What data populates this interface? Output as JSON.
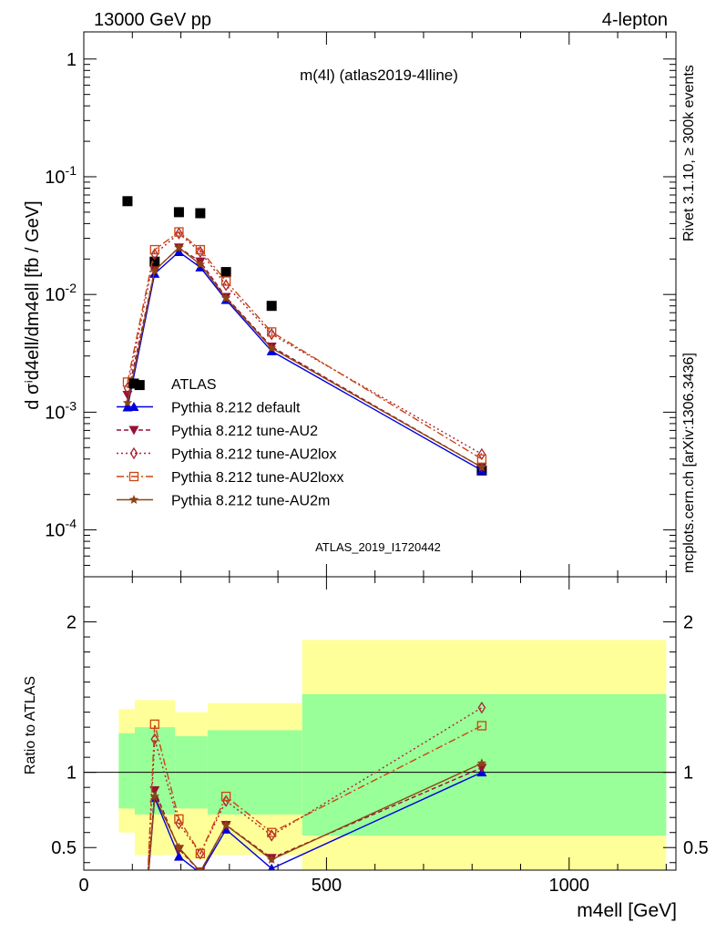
{
  "header": {
    "left": "13000 GeV pp",
    "right": "4-lepton"
  },
  "side_text": {
    "rivet": "Rivet 3.1.10, ≥ 300k events",
    "mcplots": "mcplots.cern.ch [arXiv:1306.3436]"
  },
  "chart_data": [
    {
      "type": "line",
      "title": "m(4l) (atlas2019-4lline)",
      "analysis_label": "ATLAS_2019_I1720442",
      "ylabel": "d σⁱd4ell/dm4ell [fb / GeV]",
      "yscale": "log",
      "ylim": [
        4e-05,
        1.7
      ],
      "xlim": [
        0,
        1220
      ],
      "y_ticks": [
        "10^-4",
        "10^-3",
        "10^-2",
        "10^-1",
        "1"
      ],
      "legend_position": "left-middle",
      "series": [
        {
          "name": "ATLAS",
          "color": "#000000",
          "marker": "square",
          "x": [
            90,
            115,
            146,
            196,
            240,
            293,
            387,
            820
          ],
          "y": [
            0.062,
            0.0017,
            0.019,
            0.05,
            0.049,
            0.0155,
            0.008,
            0.00032
          ]
        },
        {
          "name": "Pythia 8.212 default",
          "color": "#0000dd",
          "marker": "triangle-up",
          "dash": "",
          "x": [
            90,
            146,
            196,
            240,
            293,
            387,
            820
          ],
          "y": [
            0.0011,
            0.015,
            0.023,
            0.017,
            0.009,
            0.0033,
            0.00032
          ]
        },
        {
          "name": "Pythia 8.212 tune-AU2",
          "color": "#991133",
          "marker": "triangle-down",
          "dash": "5,3",
          "x": [
            90,
            146,
            196,
            240,
            293,
            387,
            820
          ],
          "y": [
            0.0014,
            0.016,
            0.025,
            0.019,
            0.0095,
            0.0036,
            0.00034
          ]
        },
        {
          "name": "Pythia 8.212 tune-AU2lox",
          "color": "#aa2233",
          "marker": "diamond",
          "dash": "2,3",
          "x": [
            90,
            146,
            196,
            240,
            293,
            387,
            820
          ],
          "y": [
            0.0016,
            0.022,
            0.033,
            0.023,
            0.012,
            0.0046,
            0.00044
          ]
        },
        {
          "name": "Pythia 8.212 tune-AU2loxx",
          "color": "#cc4411",
          "marker": "square-open",
          "dash": "8,3,2,3",
          "x": [
            90,
            146,
            196,
            240,
            293,
            387,
            820
          ],
          "y": [
            0.0018,
            0.024,
            0.034,
            0.024,
            0.013,
            0.0048,
            0.0004
          ]
        },
        {
          "name": "Pythia 8.212 tune-AU2m",
          "color": "#8b4513",
          "marker": "star",
          "dash": "",
          "x": [
            90,
            146,
            196,
            240,
            293,
            387,
            820
          ],
          "y": [
            0.0012,
            0.016,
            0.025,
            0.018,
            0.0093,
            0.0035,
            0.00034
          ]
        }
      ]
    },
    {
      "type": "line",
      "xlabel": "m4ell [GeV]",
      "ylabel": "Ratio to ATLAS",
      "xlim": [
        0,
        1220
      ],
      "ylim": [
        0.35,
        2.3
      ],
      "x_ticks": [
        0,
        500,
        1000
      ],
      "y_ticks": [
        0.5,
        1,
        2
      ],
      "y_tick_labels": [
        "0.5",
        "1",
        "2"
      ],
      "bands": [
        {
          "x1": 72,
          "x2": 105,
          "yellow": [
            0.6,
            1.42
          ],
          "green": [
            0.76,
            1.26
          ]
        },
        {
          "x1": 105,
          "x2": 188,
          "yellow": [
            0.45,
            1.48
          ],
          "green": [
            0.72,
            1.3
          ]
        },
        {
          "x1": 188,
          "x2": 255,
          "yellow": [
            0.42,
            1.4
          ],
          "green": [
            0.76,
            1.24
          ]
        },
        {
          "x1": 255,
          "x2": 450,
          "yellow": [
            0.45,
            1.46
          ],
          "green": [
            0.72,
            1.28
          ]
        },
        {
          "x1": 450,
          "x2": 1200,
          "yellow": [
            0.35,
            1.88
          ],
          "green": [
            0.58,
            1.52
          ]
        }
      ],
      "series": [
        {
          "name": "Pythia 8.212 default",
          "x": [
            146,
            196,
            240,
            293,
            387,
            820
          ],
          "y": [
            0.83,
            0.44,
            0.33,
            0.62,
            0.36,
            1.0
          ]
        },
        {
          "name": "Pythia 8.212 tune-AU2",
          "x": [
            146,
            196,
            240,
            293,
            387,
            820
          ],
          "y": [
            0.88,
            0.49,
            0.34,
            0.65,
            0.43,
            1.03
          ]
        },
        {
          "name": "Pythia 8.212 tune-AU2lox",
          "x": [
            146,
            196,
            240,
            293,
            387,
            820
          ],
          "y": [
            1.22,
            0.66,
            0.46,
            0.81,
            0.58,
            1.43
          ]
        },
        {
          "name": "Pythia 8.212 tune-AU2loxx",
          "x": [
            146,
            196,
            240,
            293,
            387,
            820
          ],
          "y": [
            1.32,
            0.69,
            0.46,
            0.84,
            0.6,
            1.31
          ]
        },
        {
          "name": "Pythia 8.212 tune-AU2m",
          "x": [
            146,
            196,
            240,
            293,
            387,
            820
          ],
          "y": [
            0.84,
            0.5,
            0.34,
            0.65,
            0.42,
            1.06
          ]
        }
      ]
    }
  ]
}
